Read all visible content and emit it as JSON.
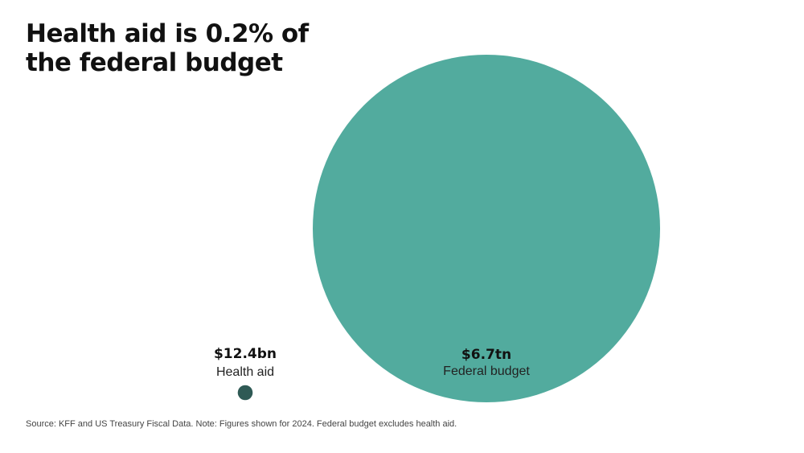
{
  "title": "Health aid is 0.2% of the federal budget",
  "source_note": "Source: KFF and US Treasury Fiscal Data. Note: Figures shown for 2024. Federal budget excludes health aid.",
  "colors": {
    "health_aid": "#2f5a55",
    "federal_budget": "#52ab9e"
  },
  "chart_data": {
    "type": "proportional-area",
    "title": "Health aid is 0.2% of the federal budget",
    "items": [
      {
        "name": "Health aid",
        "value_label": "$12.4bn",
        "value": 12.4,
        "unit": "billion USD"
      },
      {
        "name": "Federal budget",
        "value_label": "$6.7tn",
        "value": 6700,
        "unit": "billion USD"
      }
    ]
  }
}
